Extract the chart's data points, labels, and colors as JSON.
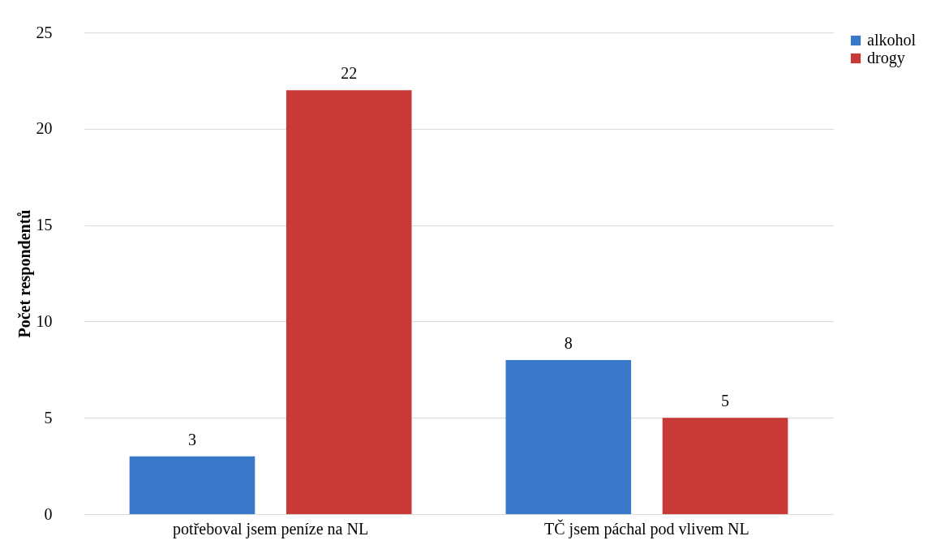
{
  "chart_data": {
    "type": "bar",
    "ylabel": "Počet respondentů",
    "categories": [
      "potřeboval jsem peníze na NL",
      "TČ jsem páchal pod vlivem NL"
    ],
    "series": [
      {
        "name": "alkohol",
        "color": "#3a78c9",
        "values": [
          3,
          8
        ]
      },
      {
        "name": "drogy",
        "color": "#c93a37",
        "values": [
          22,
          5
        ]
      }
    ],
    "ylim": [
      0,
      25
    ],
    "yticks": [
      0,
      5,
      10,
      15,
      20,
      25
    ],
    "grid": "y",
    "legend": "right",
    "data_labels": true
  }
}
